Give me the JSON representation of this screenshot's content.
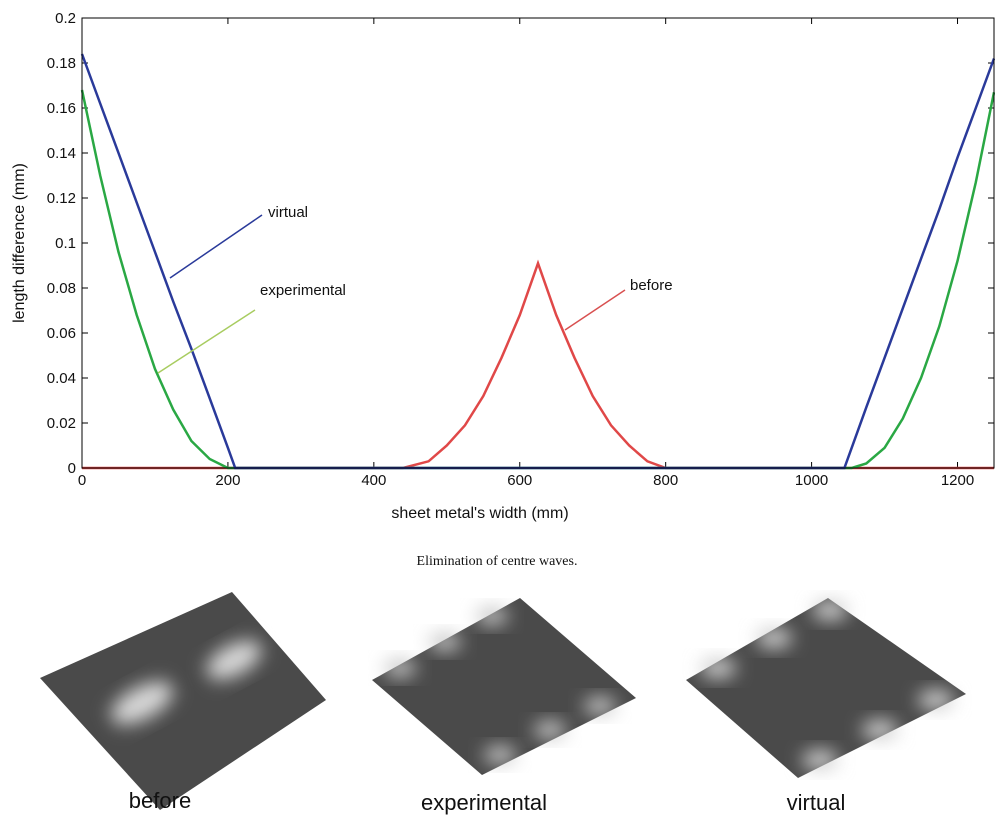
{
  "chart_data": {
    "type": "line",
    "x_label": "sheet metal's width (mm)",
    "y_label": "length difference (mm)",
    "x": [
      0,
      25,
      50,
      75,
      100,
      125,
      150,
      175,
      200,
      210,
      300,
      400,
      440,
      475,
      500,
      525,
      550,
      575,
      600,
      625,
      650,
      675,
      700,
      725,
      750,
      775,
      800,
      810,
      900,
      1000,
      1045,
      1055,
      1075,
      1100,
      1125,
      1150,
      1175,
      1200,
      1225,
      1250
    ],
    "series": [
      {
        "name": "before",
        "color": "#e04848",
        "values": [
          0,
          0,
          0,
          0,
          0,
          0,
          0,
          0,
          0,
          0,
          0,
          0,
          0,
          0.003,
          0.01,
          0.019,
          0.032,
          0.049,
          0.068,
          0.091,
          0.068,
          0.049,
          0.032,
          0.019,
          0.01,
          0.003,
          0.0,
          0,
          0,
          0,
          0,
          0,
          0,
          0,
          0,
          0,
          0,
          0,
          0,
          0
        ]
      },
      {
        "name": "experimental",
        "color": "#2aa844",
        "values": [
          0.168,
          0.13,
          0.096,
          0.068,
          0.044,
          0.026,
          0.012,
          0.004,
          0.0,
          0,
          0,
          0,
          0,
          0,
          0,
          0,
          0,
          0,
          0,
          0,
          0,
          0,
          0,
          0,
          0,
          0,
          0,
          0,
          0,
          0,
          0,
          0,
          0.002,
          0.009,
          0.022,
          0.04,
          0.063,
          0.092,
          0.127,
          0.167
        ]
      },
      {
        "name": "virtual",
        "color": "#2a3a9a",
        "values": [
          0.184,
          0.162,
          0.14,
          0.118,
          0.096,
          0.074,
          0.053,
          0.031,
          0.009,
          0,
          0,
          0,
          0,
          0,
          0,
          0,
          0,
          0,
          0,
          0,
          0,
          0,
          0,
          0,
          0,
          0,
          0,
          0,
          0,
          0,
          0,
          0.009,
          0.027,
          0.049,
          0.071,
          0.093,
          0.115,
          0.138,
          0.16,
          0.182
        ]
      }
    ],
    "xlim": [
      0,
      1250
    ],
    "xticks": [
      0,
      200,
      400,
      600,
      800,
      1000,
      1200
    ],
    "ylim": [
      0,
      0.2
    ],
    "yticks": [
      0,
      0.02,
      0.04,
      0.06,
      0.08,
      0.1,
      0.12,
      0.14,
      0.16,
      0.18,
      0.2
    ]
  },
  "caption": "Elimination of centre waves.",
  "panels": [
    "before",
    "experimental",
    "virtual"
  ]
}
